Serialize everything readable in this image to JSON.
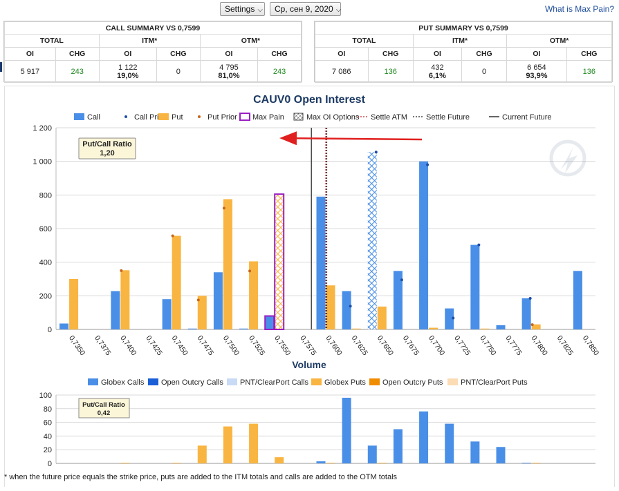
{
  "topbar": {
    "settings_label": "Settings",
    "date_label": "Ср, сен 9, 2020",
    "help_link": "What is Max Pain?"
  },
  "call_summary": {
    "title": "CALL SUMMARY VS 0,7599",
    "groups": [
      "TOTAL",
      "ITM*",
      "OTM*"
    ],
    "columns": [
      "OI",
      "CHG",
      "OI",
      "CHG",
      "OI",
      "CHG"
    ],
    "total_oi": "5 917",
    "total_chg": "243",
    "itm_oi": "1 122",
    "itm_pct": "19,0%",
    "itm_chg": "0",
    "otm_oi": "4 795",
    "otm_pct": "81,0%",
    "otm_chg": "243"
  },
  "put_summary": {
    "title": "PUT SUMMARY VS 0,7599",
    "groups": [
      "TOTAL",
      "ITM*",
      "OTM*"
    ],
    "columns": [
      "OI",
      "CHG",
      "OI",
      "CHG",
      "OI",
      "CHG"
    ],
    "total_oi": "7 086",
    "total_chg": "136",
    "itm_oi": "432",
    "itm_pct": "6,1%",
    "itm_chg": "0",
    "otm_oi": "6 654",
    "otm_pct": "93,9%",
    "otm_chg": "136"
  },
  "colors": {
    "call": "#4a8fe7",
    "put": "#f9b541",
    "call_prior": "#1f4ea8",
    "put_prior": "#c8661a",
    "max_pain": "#9b1fc3",
    "settle_atm": "#c0272d",
    "globex_calls": "#4a8fe7",
    "open_outcry_calls": "#1a5fd6",
    "pnt_calls": "#c8daf5",
    "globex_puts": "#f9b541",
    "open_outcry_puts": "#f08c00",
    "pnt_puts": "#fbdcb4",
    "change_positive": "#1e8a1e"
  },
  "chart_data": [
    {
      "type": "bar",
      "title": "CAUV0 Open Interest",
      "legend": [
        "Call",
        "Call Prior",
        "Put",
        "Put Prior",
        "Max Pain",
        "Max OI Options",
        "Settle ATM",
        "Settle Future",
        "Current Future"
      ],
      "legend_position": "top",
      "categories": [
        "0,7350",
        "0,7375",
        "0,7400",
        "0,7425",
        "0,7450",
        "0,7475",
        "0,7500",
        "0,7525",
        "0,7550",
        "0,7575",
        "0,7600",
        "0,7625",
        "0,7650",
        "0,7675",
        "0,7700",
        "0,7725",
        "0,7750",
        "0,7775",
        "0,7800",
        "0,7825",
        "0,7850"
      ],
      "series": [
        {
          "name": "Call",
          "values": [
            35,
            0,
            228,
            0,
            180,
            5,
            340,
            5,
            80,
            0,
            790,
            228,
            1055,
            348,
            1000,
            125,
            503,
            25,
            185,
            0,
            348
          ]
        },
        {
          "name": "Call Prior",
          "values": [
            null,
            null,
            null,
            null,
            null,
            null,
            null,
            null,
            null,
            null,
            null,
            138,
            1055,
            295,
            980,
            68,
            503,
            null,
            185,
            null,
            null
          ]
        },
        {
          "name": "Put",
          "values": [
            300,
            0,
            352,
            0,
            557,
            200,
            775,
            405,
            805,
            0,
            262,
            5,
            136,
            0,
            10,
            0,
            5,
            0,
            30,
            0,
            0
          ]
        },
        {
          "name": "Put Prior",
          "values": [
            null,
            null,
            350,
            null,
            557,
            175,
            722,
            348,
            null,
            null,
            null,
            null,
            null,
            null,
            null,
            null,
            null,
            null,
            28,
            null,
            null
          ]
        }
      ],
      "max_pain_strike": "0,7550",
      "max_oi_options": [
        "0,7550 Put",
        "0,7650 Call"
      ],
      "settle_atm_x": 0.76,
      "settle_future_x": 0.7601,
      "current_future_x": 0.7586,
      "ylim": [
        0,
        1200
      ],
      "yticks": [
        "0",
        "200",
        "400",
        "600",
        "800",
        "1 000",
        "1 200"
      ],
      "grid": true,
      "annotation": {
        "label": "Put/Call Ratio",
        "value": "1,20"
      }
    },
    {
      "type": "bar",
      "title": "Volume",
      "legend": [
        "Globex Calls",
        "Open Outcry Calls",
        "PNT/ClearPort Calls",
        "Globex Puts",
        "Open Outcry Puts",
        "PNT/ClearPort Puts"
      ],
      "legend_position": "top",
      "categories": [
        "0,7350",
        "0,7375",
        "0,7400",
        "0,7425",
        "0,7450",
        "0,7475",
        "0,7500",
        "0,7525",
        "0,7550",
        "0,7575",
        "0,7600",
        "0,7625",
        "0,7650",
        "0,7675",
        "0,7700",
        "0,7725",
        "0,7750",
        "0,7775",
        "0,7800",
        "0,7825",
        "0,7850"
      ],
      "series": [
        {
          "name": "Globex Calls",
          "values": [
            0,
            0,
            0,
            0,
            0,
            0,
            0,
            0,
            0,
            0,
            3,
            96,
            26,
            50,
            76,
            58,
            32,
            24,
            1,
            0,
            0
          ]
        },
        {
          "name": "Globex Puts",
          "values": [
            0,
            0,
            1,
            0,
            1,
            26,
            54,
            58,
            9,
            0,
            1,
            0,
            1,
            0,
            0,
            0,
            0,
            0,
            1,
            0,
            0
          ]
        }
      ],
      "ylim": [
        0,
        100
      ],
      "yticks": [
        "0",
        "20",
        "40",
        "60",
        "80",
        "100"
      ],
      "grid": true,
      "annotation": {
        "label": "Put/Call Ratio",
        "value": "0,42"
      }
    }
  ],
  "footnote": "* when the future price equals the strike price, puts are added to the ITM totals and calls are added to the OTM totals"
}
